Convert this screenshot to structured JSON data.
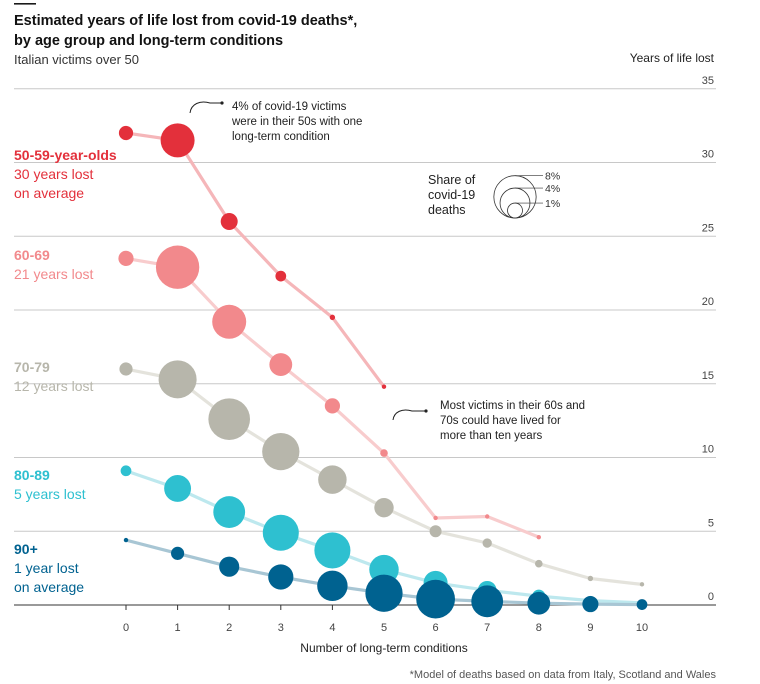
{
  "chart_data": {
    "type": "scatter",
    "title": "Estimated years of life lost from covid-19 deaths*,",
    "title_line2": "by age group and long-term conditions",
    "subtitle": "Italian victims over 50",
    "xlabel": "Number of long-term conditions",
    "ylabel": "Years of life lost",
    "x": [
      0,
      1,
      2,
      3,
      4,
      5,
      6,
      7,
      8,
      9,
      10
    ],
    "xlim": [
      0,
      10
    ],
    "ylim": [
      0,
      35
    ],
    "yticks": [
      0,
      5,
      10,
      15,
      20,
      25,
      30,
      35
    ],
    "grid": true,
    "size_legend": {
      "title_lines": [
        "Share of",
        "covid-19",
        "deaths"
      ],
      "labels": [
        "8%",
        "4%",
        "1%"
      ],
      "values": [
        8,
        4,
        1
      ]
    },
    "series": [
      {
        "name": "50-59-year-olds",
        "sub_lines": [
          "30 years lost",
          "on average"
        ],
        "color": "#e3303b",
        "line_color": "#f5b6b9",
        "points": [
          {
            "x": 0,
            "y": 32.0,
            "share": 0.7
          },
          {
            "x": 1,
            "y": 31.5,
            "share": 4.0
          },
          {
            "x": 2,
            "y": 26.0,
            "share": 1.0
          },
          {
            "x": 3,
            "y": 22.3,
            "share": 0.4
          },
          {
            "x": 4,
            "y": 19.5,
            "share": 0.1
          },
          {
            "x": 5,
            "y": 14.8,
            "share": 0.03
          }
        ]
      },
      {
        "name": "60-69",
        "sub_lines": [
          "21 years lost"
        ],
        "color": "#f2898c",
        "line_color": "#f8cccd",
        "points": [
          {
            "x": 0,
            "y": 23.5,
            "share": 0.8
          },
          {
            "x": 1,
            "y": 22.9,
            "share": 6.5
          },
          {
            "x": 2,
            "y": 19.2,
            "share": 4.0
          },
          {
            "x": 3,
            "y": 16.3,
            "share": 1.8
          },
          {
            "x": 4,
            "y": 13.5,
            "share": 0.8
          },
          {
            "x": 5,
            "y": 10.3,
            "share": 0.2
          },
          {
            "x": 6,
            "y": 5.9,
            "share": 0.06
          },
          {
            "x": 7,
            "y": 6.0,
            "share": 0.04
          },
          {
            "x": 8,
            "y": 4.6,
            "share": 0.03
          }
        ]
      },
      {
        "name": "70-79",
        "sub_lines": [
          "12 years lost"
        ],
        "color": "#b7b6ab",
        "line_color": "#e4e3dc",
        "points": [
          {
            "x": 0,
            "y": 16.0,
            "share": 0.6
          },
          {
            "x": 1,
            "y": 15.3,
            "share": 5.0
          },
          {
            "x": 2,
            "y": 12.6,
            "share": 6.0
          },
          {
            "x": 3,
            "y": 10.4,
            "share": 4.8
          },
          {
            "x": 4,
            "y": 8.5,
            "share": 2.8
          },
          {
            "x": 5,
            "y": 6.6,
            "share": 1.3
          },
          {
            "x": 6,
            "y": 5.0,
            "share": 0.5
          },
          {
            "x": 7,
            "y": 4.2,
            "share": 0.3
          },
          {
            "x": 8,
            "y": 2.8,
            "share": 0.2
          },
          {
            "x": 9,
            "y": 1.8,
            "share": 0.1
          },
          {
            "x": 10,
            "y": 1.4,
            "share": 0.06
          }
        ]
      },
      {
        "name": "80-89",
        "sub_lines": [
          "5 years lost"
        ],
        "color": "#2ec0d0",
        "line_color": "#bde8ee",
        "points": [
          {
            "x": 0,
            "y": 9.1,
            "share": 0.4
          },
          {
            "x": 1,
            "y": 7.9,
            "share": 2.5
          },
          {
            "x": 2,
            "y": 6.3,
            "share": 3.5
          },
          {
            "x": 3,
            "y": 4.9,
            "share": 4.5
          },
          {
            "x": 4,
            "y": 3.7,
            "share": 4.5
          },
          {
            "x": 5,
            "y": 2.4,
            "share": 3.0
          },
          {
            "x": 6,
            "y": 1.5,
            "share": 2.0
          },
          {
            "x": 7,
            "y": 1.0,
            "share": 1.2
          },
          {
            "x": 8,
            "y": 0.6,
            "share": 0.6
          },
          {
            "x": 9,
            "y": 0.3,
            "share": 0.3
          },
          {
            "x": 10,
            "y": 0.15,
            "share": 0.1
          }
        ]
      },
      {
        "name": "90+",
        "sub_lines": [
          "1 year lost",
          "on average"
        ],
        "color": "#006290",
        "line_color": "#a8c6d4",
        "points": [
          {
            "x": 0,
            "y": 4.4,
            "share": 0.05
          },
          {
            "x": 1,
            "y": 3.5,
            "share": 0.6
          },
          {
            "x": 2,
            "y": 2.6,
            "share": 1.4
          },
          {
            "x": 3,
            "y": 1.9,
            "share": 2.2
          },
          {
            "x": 4,
            "y": 1.3,
            "share": 3.2
          },
          {
            "x": 5,
            "y": 0.8,
            "share": 4.8
          },
          {
            "x": 6,
            "y": 0.4,
            "share": 5.2
          },
          {
            "x": 7,
            "y": 0.25,
            "share": 3.5
          },
          {
            "x": 8,
            "y": 0.12,
            "share": 1.8
          },
          {
            "x": 9,
            "y": 0.06,
            "share": 0.9
          },
          {
            "x": 10,
            "y": 0.03,
            "share": 0.4
          }
        ]
      }
    ],
    "annotations": [
      {
        "lines": [
          "4% of covid-19 victims",
          "were in their 50s with one",
          "long-term condition"
        ]
      },
      {
        "lines": [
          "Most victims in their 60s and",
          "70s could have lived for",
          "more than ten years"
        ]
      }
    ],
    "footnote": "*Model of deaths based on data from Italy, Scotland and Wales"
  }
}
